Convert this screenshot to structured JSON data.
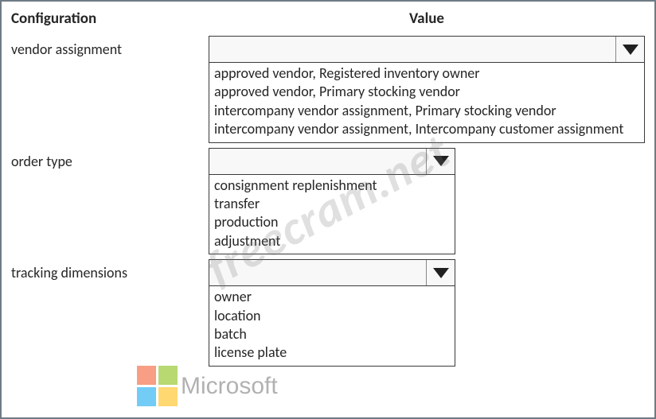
{
  "header": {
    "config": "Configuration",
    "value": "Value"
  },
  "rows": [
    {
      "label": "vendor assignment",
      "options": [
        "approved vendor, Registered inventory owner",
        "approved vendor, Primary stocking vendor",
        "intercompany vendor assignment, Primary stocking vendor",
        "intercompany vendor assignment, Intercompany customer assignment"
      ]
    },
    {
      "label": "order type",
      "options": [
        "consignment replenishment",
        "transfer",
        "production",
        "adjustment"
      ]
    },
    {
      "label": "tracking dimensions",
      "options": [
        "owner",
        "location",
        "batch",
        "license plate"
      ]
    }
  ],
  "watermark": "freecram.net",
  "logo_text": "Microsoft",
  "colors": {
    "border": "#3a3a3a",
    "text": "#262626",
    "dropdown_bg": "#f8f8f8",
    "frame": "#6f7a84"
  }
}
